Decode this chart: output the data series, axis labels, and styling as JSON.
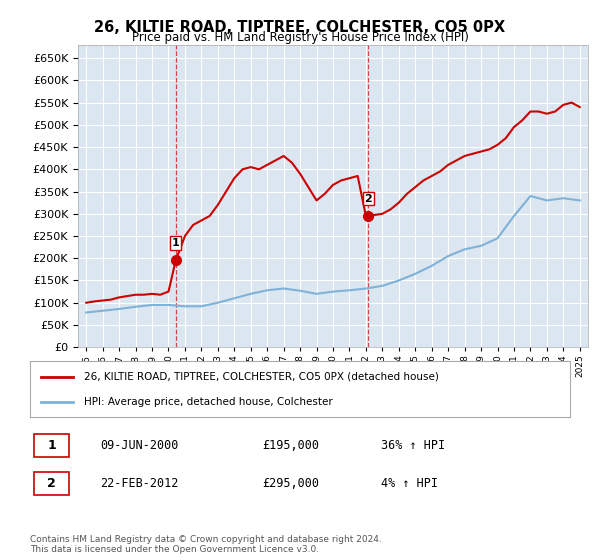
{
  "title": "26, KILTIE ROAD, TIPTREE, COLCHESTER, CO5 0PX",
  "subtitle": "Price paid vs. HM Land Registry's House Price Index (HPI)",
  "bg_color": "#ffffff",
  "plot_bg_color": "#dce6f1",
  "grid_color": "#ffffff",
  "red_color": "#cc0000",
  "blue_color": "#7fb2d9",
  "dashed_red": "#cc0000",
  "sale1_year": 2000.44,
  "sale1_price": 195000,
  "sale1_label": "1",
  "sale2_year": 2012.13,
  "sale2_price": 295000,
  "sale2_label": "2",
  "legend_entry1": "26, KILTIE ROAD, TIPTREE, COLCHESTER, CO5 0PX (detached house)",
  "legend_entry2": "HPI: Average price, detached house, Colchester",
  "annotation1_date": "09-JUN-2000",
  "annotation1_price": "£195,000",
  "annotation1_hpi": "36% ↑ HPI",
  "annotation2_date": "22-FEB-2012",
  "annotation2_price": "£295,000",
  "annotation2_hpi": "4% ↑ HPI",
  "footer": "Contains HM Land Registry data © Crown copyright and database right 2024.\nThis data is licensed under the Open Government Licence v3.0.",
  "ylim_min": 0,
  "ylim_max": 680000,
  "yticks": [
    0,
    50000,
    100000,
    150000,
    200000,
    250000,
    300000,
    350000,
    400000,
    450000,
    500000,
    550000,
    600000,
    650000
  ],
  "hpi_years": [
    1995,
    1996,
    1997,
    1998,
    1999,
    2000,
    2001,
    2002,
    2003,
    2004,
    2005,
    2006,
    2007,
    2008,
    2009,
    2010,
    2011,
    2012,
    2013,
    2014,
    2015,
    2016,
    2017,
    2018,
    2019,
    2020,
    2021,
    2022,
    2023,
    2024,
    2025
  ],
  "hpi_values": [
    78000,
    82000,
    86000,
    91000,
    95000,
    95000,
    92000,
    92000,
    100000,
    110000,
    120000,
    128000,
    132000,
    127000,
    120000,
    125000,
    128000,
    132000,
    138000,
    150000,
    165000,
    183000,
    205000,
    220000,
    228000,
    245000,
    295000,
    340000,
    330000,
    335000,
    330000
  ],
  "price_years": [
    1995.0,
    1995.5,
    1996.0,
    1996.5,
    1997.0,
    1997.5,
    1998.0,
    1998.5,
    1999.0,
    1999.5,
    2000.0,
    2000.44,
    2001.0,
    2001.5,
    2002.0,
    2002.5,
    2003.0,
    2003.5,
    2004.0,
    2004.5,
    2005.0,
    2005.5,
    2006.0,
    2006.5,
    2007.0,
    2007.5,
    2008.0,
    2008.5,
    2009.0,
    2009.5,
    2010.0,
    2010.5,
    2011.0,
    2011.5,
    2012.0,
    2012.13,
    2013.0,
    2013.5,
    2014.0,
    2014.5,
    2015.0,
    2015.5,
    2016.0,
    2016.5,
    2017.0,
    2017.5,
    2018.0,
    2018.5,
    2019.0,
    2019.5,
    2020.0,
    2020.5,
    2021.0,
    2021.5,
    2022.0,
    2022.5,
    2023.0,
    2023.5,
    2024.0,
    2024.5,
    2025.0
  ],
  "price_values": [
    100000,
    103000,
    105000,
    107000,
    112000,
    115000,
    118000,
    118000,
    120000,
    118000,
    125000,
    195000,
    250000,
    275000,
    285000,
    295000,
    320000,
    350000,
    380000,
    400000,
    405000,
    400000,
    410000,
    420000,
    430000,
    415000,
    390000,
    360000,
    330000,
    345000,
    365000,
    375000,
    380000,
    385000,
    295000,
    295000,
    300000,
    310000,
    325000,
    345000,
    360000,
    375000,
    385000,
    395000,
    410000,
    420000,
    430000,
    435000,
    440000,
    445000,
    455000,
    470000,
    495000,
    510000,
    530000,
    530000,
    525000,
    530000,
    545000,
    550000,
    540000
  ]
}
